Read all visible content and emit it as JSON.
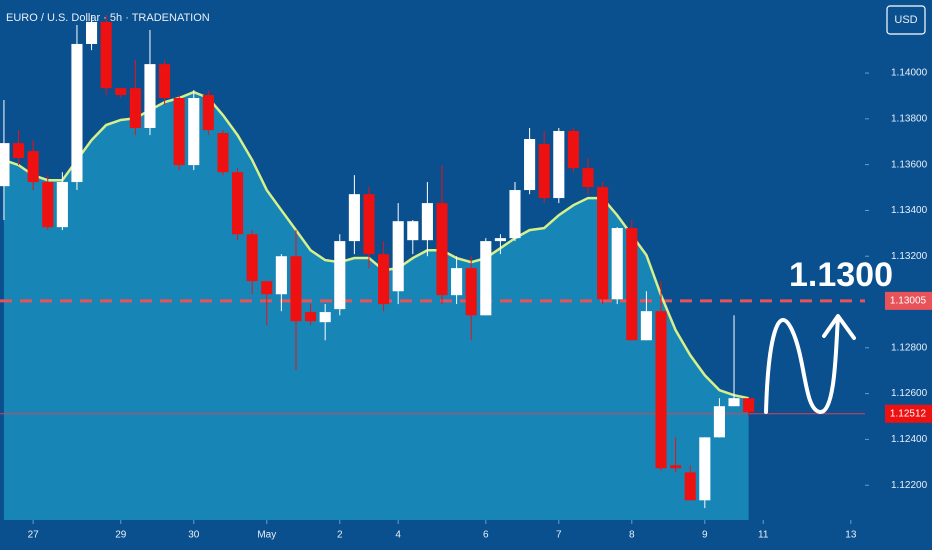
{
  "chart_data": {
    "type": "candlestick",
    "title": "EURO / U.S. Dollar · 5h · TRADENATION",
    "currency": "USD",
    "annotation": "1.1300",
    "up_color": "#ffffff",
    "down_color": "#ee1111",
    "ema_color": "#d8f08a",
    "xlim": [
      -0.27,
      58.97
    ],
    "ylim": [
      1.12048,
      1.14319
    ],
    "yticks": [
      {
        "value": 1.14,
        "label": "1.14000"
      },
      {
        "value": 1.138,
        "label": "1.13800"
      },
      {
        "value": 1.136,
        "label": "1.13600"
      },
      {
        "value": 1.134,
        "label": "1.13400"
      },
      {
        "value": 1.132,
        "label": "1.13200"
      },
      {
        "value": 1.128,
        "label": "1.12800"
      },
      {
        "value": 1.126,
        "label": "1.12600"
      },
      {
        "value": 1.124,
        "label": "1.12400"
      },
      {
        "value": 1.122,
        "label": "1.12200"
      }
    ],
    "xticks": [
      {
        "value": 2,
        "label": "27"
      },
      {
        "value": 8,
        "label": "29"
      },
      {
        "value": 13,
        "label": "30"
      },
      {
        "value": 18,
        "label": "May"
      },
      {
        "value": 23,
        "label": "2"
      },
      {
        "value": 27,
        "label": "4"
      },
      {
        "value": 33,
        "label": "6"
      },
      {
        "value": 38,
        "label": "7"
      },
      {
        "value": 43,
        "label": "8"
      },
      {
        "value": 48,
        "label": "9"
      },
      {
        "value": 52,
        "label": "11"
      },
      {
        "value": 58,
        "label": "13"
      }
    ],
    "price_lines": [
      {
        "value": 1.13005,
        "label": "1.13005",
        "style": "dashed"
      },
      {
        "value": 1.12512,
        "label": "1.12512",
        "style": "solid"
      }
    ],
    "open": [
      1.13506,
      1.13694,
      1.13659,
      1.13524,
      1.13327,
      1.13524,
      1.14127,
      1.14223,
      1.13934,
      1.13934,
      1.1376,
      1.14039,
      1.13891,
      1.13598,
      1.13904,
      1.13738,
      1.13567,
      1.13296,
      1.13091,
      1.13034,
      1.132,
      1.12956,
      1.12912,
      1.12969,
      1.13266,
      1.13471,
      1.13209,
      1.13047,
      1.1327,
      1.1327,
      1.13432,
      1.1303,
      1.13148,
      1.12942,
      1.13266,
      1.13279,
      1.13489,
      1.1369,
      1.13454,
      1.13747,
      1.13585,
      1.13502,
      1.13012,
      1.13323,
      1.12833,
      1.1296,
      1.12287,
      1.12256,
      1.12134,
      1.12409,
      1.12545,
      1.1258
    ],
    "high": [
      1.13882,
      1.13751,
      1.13707,
      1.13554,
      1.13567,
      1.1421,
      1.14253,
      1.14253,
      1.13934,
      1.14057,
      1.14188,
      1.14057,
      1.13904,
      1.13926,
      1.13926,
      1.13751,
      1.13585,
      1.13314,
      1.13091,
      1.13209,
      1.13314,
      1.12991,
      1.12991,
      1.13296,
      1.13554,
      1.13502,
      1.13266,
      1.13432,
      1.13358,
      1.13524,
      1.13598,
      1.132,
      1.132,
      1.13279,
      1.13296,
      1.13524,
      1.1376,
      1.13747,
      1.1376,
      1.1376,
      1.13629,
      1.13524,
      1.13327,
      1.13358,
      1.13047,
      1.13091,
      1.12409,
      1.12287,
      1.12409,
      1.1258,
      1.12942,
      1.1258
    ],
    "low": [
      1.13358,
      1.13598,
      1.13489,
      1.13314,
      1.13314,
      1.13489,
      1.141,
      1.13904,
      1.13891,
      1.13729,
      1.13729,
      1.1386,
      1.13576,
      1.13576,
      1.13729,
      1.13554,
      1.1327,
      1.13034,
      1.12899,
      1.1296,
      1.12702,
      1.12899,
      1.12833,
      1.12942,
      1.13209,
      1.13148,
      1.1296,
      1.12991,
      1.13209,
      1.132,
      1.12991,
      1.12991,
      1.12833,
      1.12942,
      1.13209,
      1.13266,
      1.13471,
      1.13432,
      1.13432,
      1.13567,
      1.13471,
      1.12991,
      1.12991,
      1.12833,
      1.12833,
      1.12265,
      1.12256,
      1.12134,
      1.121,
      1.12409,
      1.12545,
      1.125
    ],
    "close": [
      1.13694,
      1.13629,
      1.13524,
      1.13327,
      1.13524,
      1.14127,
      1.14223,
      1.13934,
      1.13904,
      1.1376,
      1.14039,
      1.13891,
      1.13598,
      1.13891,
      1.13751,
      1.13567,
      1.13296,
      1.13091,
      1.13034,
      1.132,
      1.12916,
      1.12916,
      1.12956,
      1.13266,
      1.13471,
      1.13209,
      1.12991,
      1.13353,
      1.13353,
      1.13432,
      1.1303,
      1.13148,
      1.12942,
      1.13266,
      1.13279,
      1.13489,
      1.13712,
      1.13454,
      1.13747,
      1.13585,
      1.13502,
      1.13012,
      1.13323,
      1.12833,
      1.1296,
      1.12274,
      1.12274,
      1.12134,
      1.12409,
      1.12545,
      1.1258,
      1.12519
    ],
    "ema": [
      1.1362,
      1.13598,
      1.13554,
      1.13532,
      1.13532,
      1.1362,
      1.13707,
      1.13773,
      1.13795,
      1.13803,
      1.13838,
      1.13873,
      1.13891,
      1.13917,
      1.13891,
      1.13816,
      1.13729,
      1.1362,
      1.13489,
      1.13401,
      1.13314,
      1.13226,
      1.13183,
      1.13174,
      1.13192,
      1.13192,
      1.13139,
      1.13148,
      1.13192,
      1.13226,
      1.13226,
      1.13192,
      1.13174,
      1.13192,
      1.13235,
      1.13279,
      1.13314,
      1.13323,
      1.13379,
      1.13423,
      1.13454,
      1.13454,
      1.13379,
      1.13292,
      1.13205,
      1.1303,
      1.12877,
      1.12768,
      1.1268,
      1.12615,
      1.12593,
      1.1258
    ]
  }
}
